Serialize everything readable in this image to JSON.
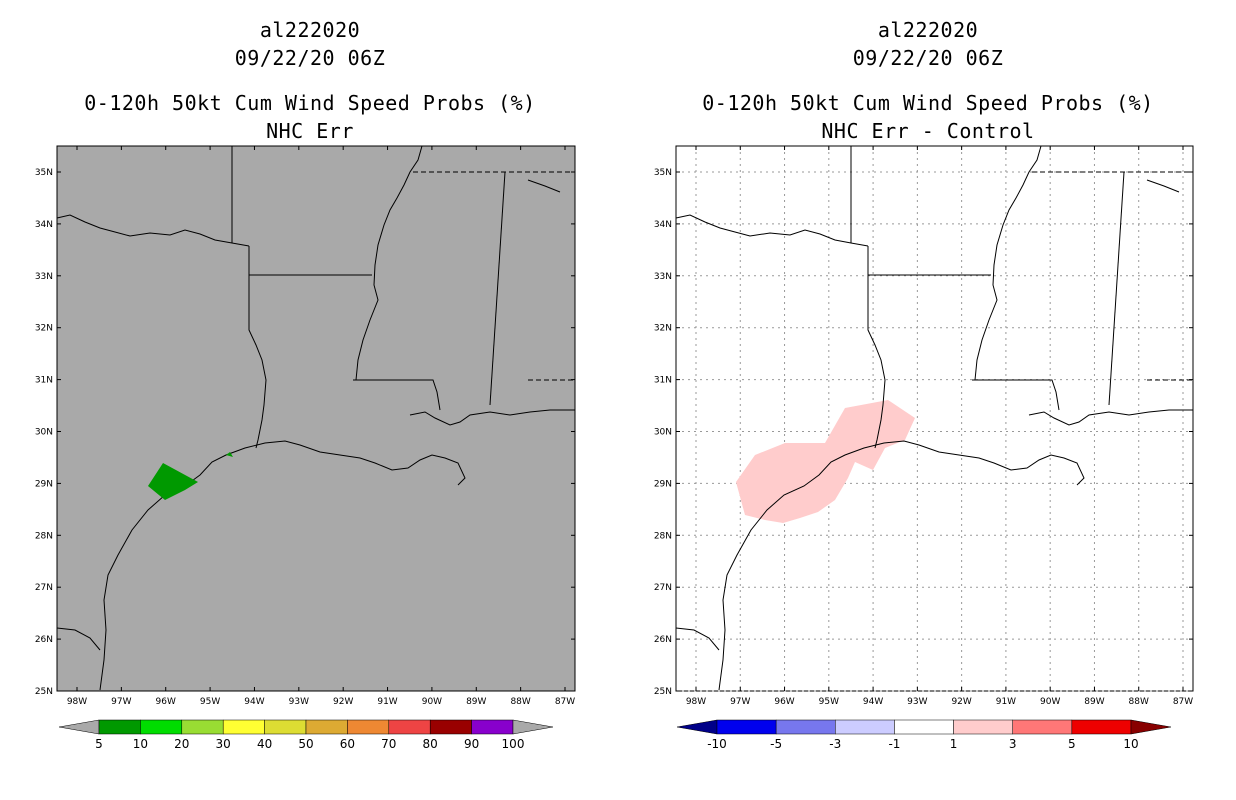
{
  "left_panel": {
    "storm_id": "al222020",
    "datetime": "09/22/20 06Z",
    "product": "0-120h 50kt Cum Wind Speed Probs (%)",
    "subtitle": "NHC Err",
    "background_color": "#a9a9a9",
    "colorbar": {
      "colors": [
        "#009900",
        "#00dd00",
        "#99dd33",
        "#ffff33",
        "#dddd33",
        "#ddaa33",
        "#ee8833",
        "#ee4444",
        "#990000",
        "#8800cc"
      ],
      "under_color": "#a9a9a9",
      "over_color": "#a9a9a9",
      "labels": [
        "5",
        "10",
        "20",
        "30",
        "40",
        "50",
        "60",
        "70",
        "80",
        "90",
        "100"
      ]
    }
  },
  "right_panel": {
    "storm_id": "al222020",
    "datetime": "09/22/20 06Z",
    "product": "0-120h 50kt Cum Wind Speed Probs (%)",
    "subtitle": "NHC Err - Control",
    "background_color": "#ffffff",
    "colorbar": {
      "colors": [
        "#0000ee",
        "#7777ee",
        "#ccccff",
        "#ffffff",
        "#ffcccc",
        "#ff7777",
        "#ee0000"
      ],
      "under_color": "#000088",
      "over_color": "#880000",
      "labels": [
        "-10",
        "-5",
        "-3",
        "-1",
        "1",
        "3",
        "5",
        "10"
      ]
    }
  },
  "map": {
    "lat_labels": [
      "35N",
      "34N",
      "33N",
      "32N",
      "31N",
      "30N",
      "29N",
      "28N",
      "27N",
      "26N",
      "25N"
    ],
    "lon_labels": [
      "98W",
      "97W",
      "96W",
      "95W",
      "94W",
      "93W",
      "92W",
      "91W",
      "90W",
      "89W",
      "88W",
      "87W"
    ]
  }
}
